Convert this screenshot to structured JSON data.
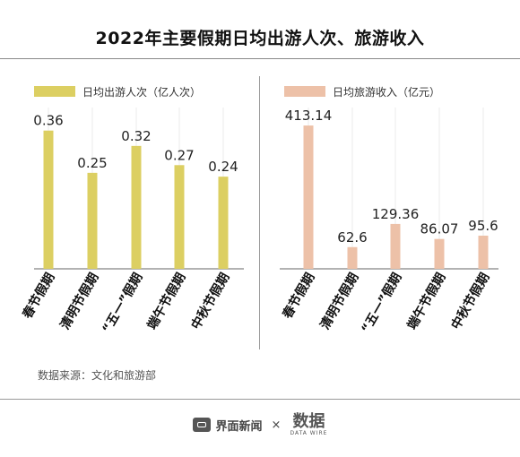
{
  "title": "2022年主要假期日均出游人次、旅游收入",
  "source": "数据来源：文化和旅游部",
  "footer": {
    "brand1": "界面新闻",
    "times": "×",
    "brand2": "数据",
    "brand2_sub": "DATA WIRE"
  },
  "colors": {
    "left": "#dccf62",
    "right": "#edc1a8"
  },
  "chart_data": [
    {
      "type": "bar",
      "legend": "日均出游人次（亿人次）",
      "categories": [
        "春节假期",
        "清明节假期",
        "“五一”假期",
        "端午节假期",
        "中秋节假期"
      ],
      "values": [
        0.36,
        0.25,
        0.32,
        0.27,
        0.24
      ],
      "value_labels": [
        "0.36",
        "0.25",
        "0.32",
        "0.27",
        "0.24"
      ],
      "ylim": [
        0,
        0.42
      ]
    },
    {
      "type": "bar",
      "legend": "日均旅游收入（亿元）",
      "categories": [
        "春节假期",
        "清明节假期",
        "“五一”假期",
        "端午节假期",
        "中秋节假期"
      ],
      "values": [
        413.14,
        62.6,
        129.36,
        86.07,
        95.6
      ],
      "value_labels": [
        "413.14",
        "62.6",
        "129.36",
        "86.07",
        "95.6"
      ],
      "ylim": [
        0,
        465
      ]
    }
  ]
}
